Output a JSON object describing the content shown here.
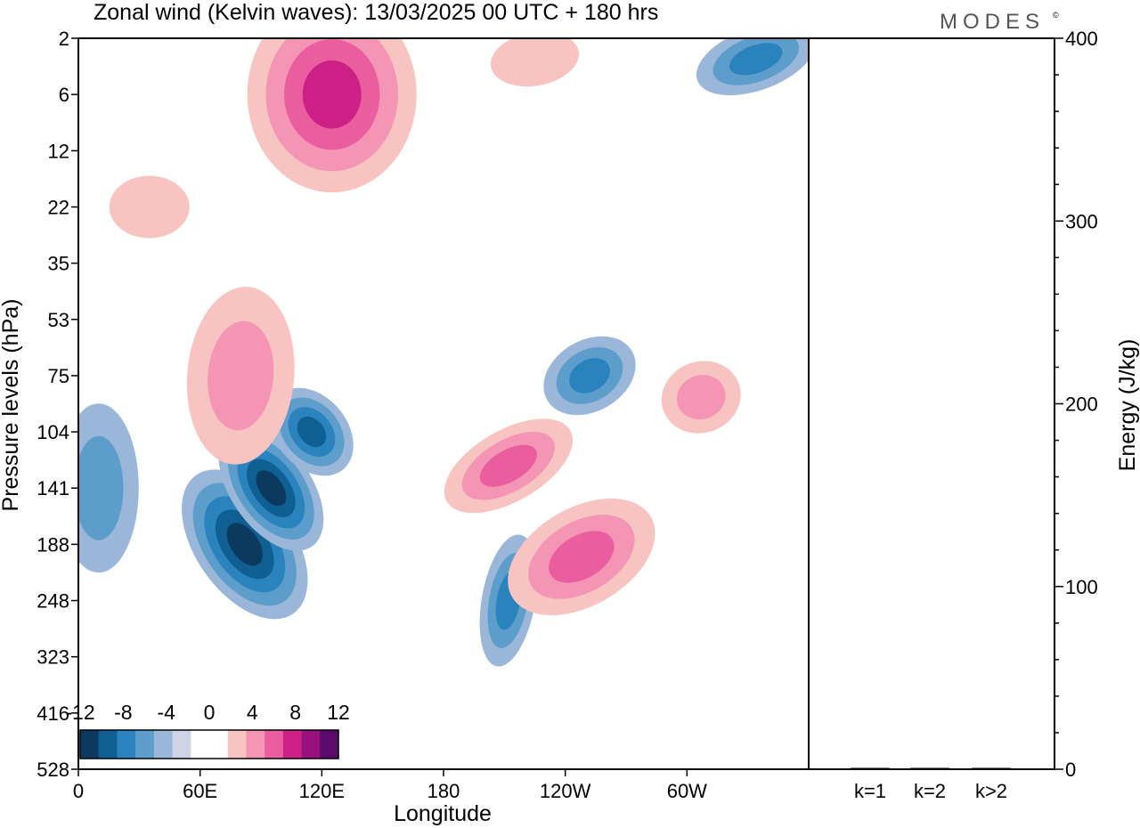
{
  "title": "Zonal wind (Kelvin waves):  13/03/2025  00 UTC  + 180 hrs",
  "brand": "MODES",
  "brand_mark": "©",
  "colors": {
    "neg": [
      "#0b3a5e",
      "#0f5f93",
      "#2a83bd",
      "#5d9dcc",
      "#9ab6d9",
      "#cfd3e6"
    ],
    "zero": "#ffffff",
    "pos": [
      "#f7c4c1",
      "#f595b5",
      "#ea5ea0",
      "#cc2087",
      "#98117c",
      "#5c0a6b"
    ]
  },
  "colorbar": {
    "labels": [
      "-12",
      "-8",
      "-4",
      "0",
      "4",
      "8",
      "12"
    ]
  },
  "chart_data": [
    {
      "type": "heatmap",
      "title": "Zonal wind (Kelvin waves):  13/03/2025  00 UTC  + 180 hrs",
      "xlabel": "Longitude",
      "ylabel": "Pressure levels (hPa)",
      "x_ticks": [
        "0",
        "60E",
        "120E",
        "180",
        "120W",
        "60W"
      ],
      "x_tick_deg": [
        0,
        60,
        120,
        180,
        240,
        300
      ],
      "xlim_deg": [
        0,
        360
      ],
      "y_ticks": [
        "2",
        "6",
        "12",
        "22",
        "35",
        "53",
        "75",
        "104",
        "141",
        "188",
        "248",
        "323",
        "416",
        "528"
      ],
      "contour_levels": [
        -12,
        -10,
        -8,
        -6,
        -4,
        -2,
        2,
        4,
        6,
        8,
        10,
        12
      ],
      "features": [
        {
          "lon": 82,
          "p": 188,
          "value": -10,
          "shape": "tilted jet band from 188 to 75 hPa"
        },
        {
          "lon": 95,
          "p": 141,
          "value": -10
        },
        {
          "lon": 115,
          "p": 104,
          "value": -8
        },
        {
          "lon": 10,
          "p": 141,
          "value": -5
        },
        {
          "lon": 212,
          "p": 248,
          "value": -6
        },
        {
          "lon": 252,
          "p": 75,
          "value": -6
        },
        {
          "lon": 334,
          "p": 3,
          "value": -7
        },
        {
          "lon": 125,
          "p": 6,
          "value": 9
        },
        {
          "lon": 80,
          "p": 75,
          "value": 5
        },
        {
          "lon": 212,
          "p": 125,
          "value": 7
        },
        {
          "lon": 248,
          "p": 200,
          "value": 6
        },
        {
          "lon": 307,
          "p": 85,
          "value": 5
        },
        {
          "lon": 35,
          "p": 22,
          "value": 3
        },
        {
          "lon": 225,
          "p": 3,
          "value": 3
        }
      ]
    },
    {
      "type": "bar",
      "categories": [
        "k=1",
        "k=2",
        "k>2"
      ],
      "values": [
        0.5,
        0.2,
        0.5
      ],
      "ylabel": "Energy (J/kg)",
      "ylim": [
        0,
        400
      ],
      "y_ticks": [
        "0",
        "100",
        "200",
        "300",
        "400"
      ]
    }
  ]
}
